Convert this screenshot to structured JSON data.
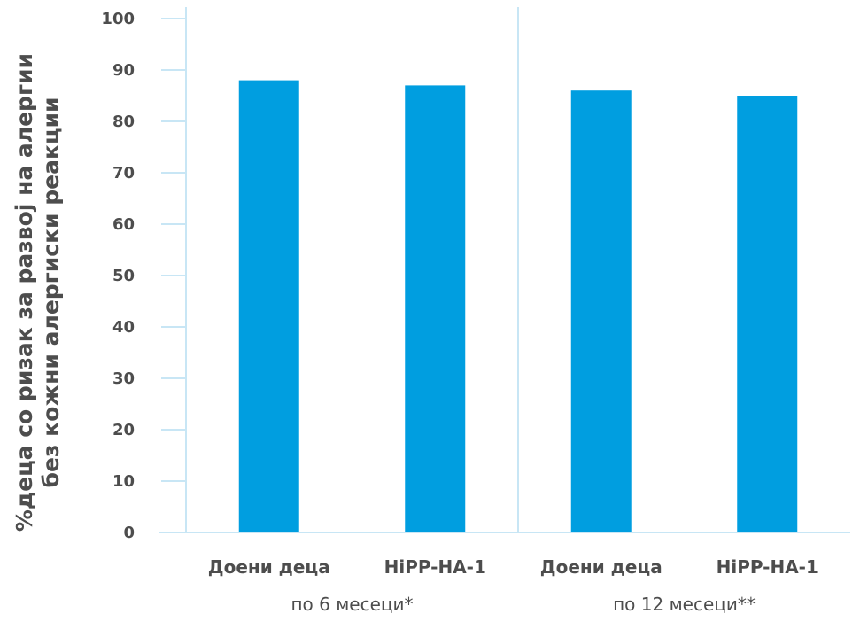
{
  "chart_data": {
    "type": "bar",
    "categories": [
      "Доени деца",
      "HiPP-HA-1",
      "Доени деца",
      "HiPP-HA-1"
    ],
    "groups": [
      "по 6 месеци*",
      "по 12 месеци**"
    ],
    "values": [
      88,
      87,
      86,
      85
    ],
    "ylabel_line1": "%деца со ризак за развој на алергии",
    "ylabel_line2": "без кожни алергиски реакции",
    "ylim": [
      0,
      100
    ],
    "yticks": [
      "0",
      "10",
      "20",
      "30",
      "40",
      "50",
      "60",
      "70",
      "80",
      "90",
      "100"
    ],
    "grid": false,
    "colors": {
      "bar": "#009ee0",
      "axis": "#c8e6f5",
      "text": "#4d4d4d"
    }
  }
}
